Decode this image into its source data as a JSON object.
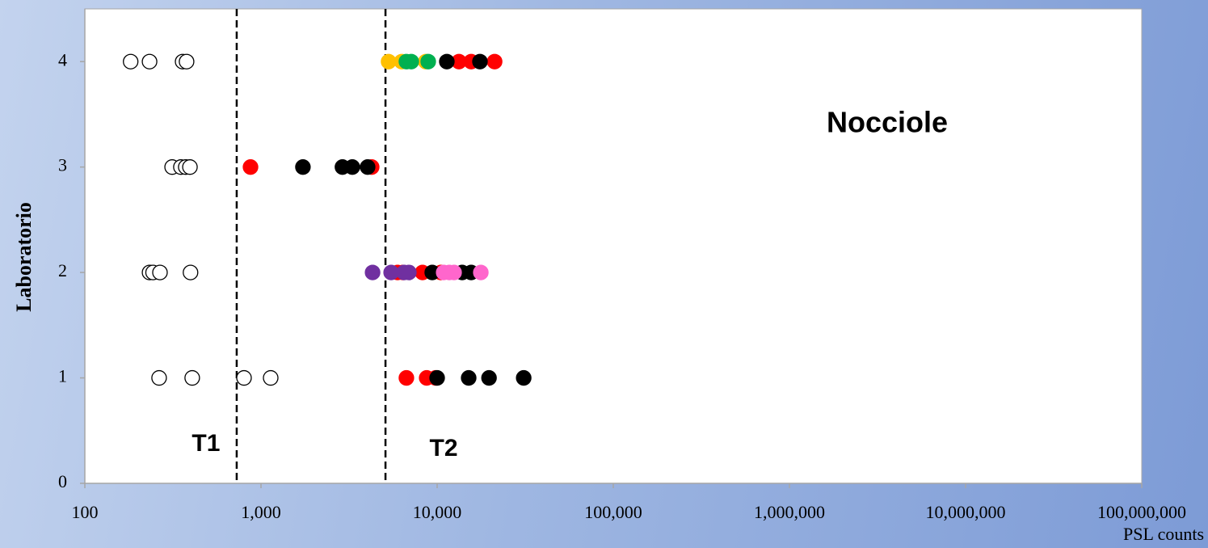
{
  "chart_data": {
    "type": "scatter",
    "x_label": "PSL counts",
    "y_label": "Laboratorio",
    "x_log": true,
    "xlim": [
      100,
      100000000
    ],
    "ylim": [
      0,
      4.5
    ],
    "xticks": [
      100,
      {
        "value": 1000,
        "label": "1,000"
      },
      {
        "value": 10000,
        "label": "10,000"
      },
      {
        "value": 100000,
        "label": "100,000"
      },
      {
        "value": 1000000,
        "label": "1,000,000"
      },
      {
        "value": 10000000,
        "label": "10,000,000"
      },
      {
        "value": 100000000,
        "label": "100,000,000"
      }
    ],
    "yticks": [
      0,
      1,
      2,
      3,
      4
    ],
    "annotations": [
      {
        "text": "Nocciole"
      }
    ],
    "vlines": [
      {
        "x": 728,
        "label": "T1"
      },
      {
        "x": 5090,
        "label": "T2"
      }
    ],
    "series": [
      {
        "color": "#ffffff",
        "edge": "#000000",
        "x": [
          182,
          233,
          359,
          378,
          313,
          351,
          374,
          395,
          233,
          244,
          267,
          398,
          264,
          407,
          801,
          1135
        ],
        "y": [
          4,
          4,
          4,
          4,
          3,
          3,
          3,
          3,
          2,
          2,
          2,
          2,
          1,
          1,
          1,
          1
        ]
      },
      {
        "color": "#ffc000",
        "x": [
          5300,
          6290,
          8620
        ],
        "y": [
          4,
          4,
          4
        ]
      },
      {
        "color": "#ff0000",
        "x": [
          13300,
          15600,
          21200,
          872,
          4250,
          5960,
          6400,
          8260,
          10500,
          6690,
          8720,
          9800
        ],
        "y": [
          4,
          4,
          4,
          3,
          3,
          2,
          2,
          2,
          2,
          1,
          1,
          1
        ]
      },
      {
        "color": "#00b050",
        "x": [
          6690,
          7130,
          8900
        ],
        "y": [
          4,
          4,
          4
        ]
      },
      {
        "color": "#7030a0",
        "x": [
          4300,
          5480,
          6490,
          6910
        ],
        "y": [
          2,
          2,
          2,
          2
        ]
      },
      {
        "color": "#000000",
        "x": [
          11350,
          17500,
          1730,
          2900,
          3300,
          4030,
          9380,
          13870,
          15600,
          10000,
          15100,
          19700,
          31000
        ],
        "y": [
          4,
          4,
          3,
          3,
          3,
          3,
          2,
          2,
          2,
          1,
          1,
          1,
          1
        ]
      },
      {
        "color": "#ff66cc",
        "x": [
          10890,
          11720,
          12480,
          17700
        ],
        "y": [
          2,
          2,
          2,
          2
        ]
      }
    ]
  }
}
